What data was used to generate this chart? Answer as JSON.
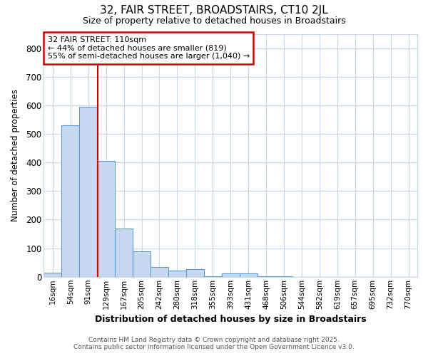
{
  "title1": "32, FAIR STREET, BROADSTAIRS, CT10 2JL",
  "title2": "Size of property relative to detached houses in Broadstairs",
  "xlabel": "Distribution of detached houses by size in Broadstairs",
  "ylabel": "Number of detached properties",
  "categories": [
    "16sqm",
    "54sqm",
    "91sqm",
    "129sqm",
    "167sqm",
    "205sqm",
    "242sqm",
    "280sqm",
    "318sqm",
    "355sqm",
    "393sqm",
    "431sqm",
    "468sqm",
    "506sqm",
    "544sqm",
    "582sqm",
    "619sqm",
    "657sqm",
    "695sqm",
    "732sqm",
    "770sqm"
  ],
  "values": [
    15,
    530,
    595,
    405,
    170,
    88,
    35,
    22,
    27,
    3,
    13,
    13,
    3,
    3,
    0,
    0,
    0,
    0,
    0,
    0,
    0
  ],
  "bar_color": "#c6d9f1",
  "bar_edge_color": "#5b9bd5",
  "background_color": "#ffffff",
  "plot_bg_color": "#ffffff",
  "grid_color": "#c8d8e8",
  "red_line_x": 2.55,
  "annotation_text": "32 FAIR STREET: 110sqm\n← 44% of detached houses are smaller (819)\n55% of semi-detached houses are larger (1,040) →",
  "annotation_box_color": "#ffffff",
  "annotation_box_edge_color": "#cc0000",
  "footer1": "Contains HM Land Registry data © Crown copyright and database right 2025.",
  "footer2": "Contains public sector information licensed under the Open Government Licence v3.0.",
  "ylim": [
    0,
    850
  ],
  "yticks": [
    0,
    100,
    200,
    300,
    400,
    500,
    600,
    700,
    800
  ]
}
